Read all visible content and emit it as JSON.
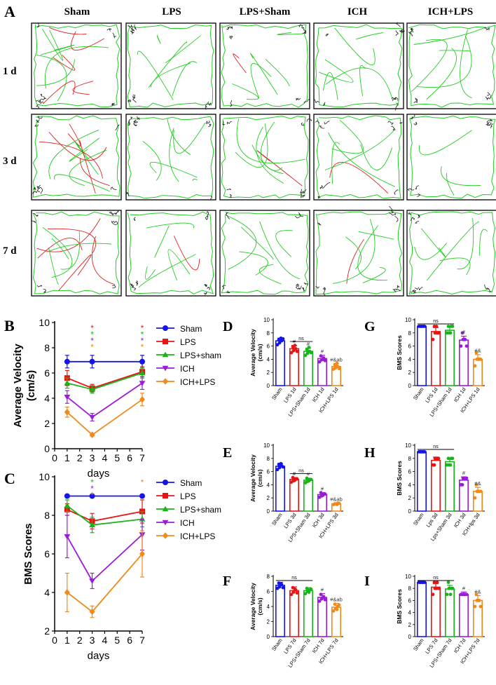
{
  "panel_letters": [
    "A",
    "B",
    "C",
    "D",
    "E",
    "F",
    "G",
    "H",
    "I"
  ],
  "trace_panel": {
    "columns": [
      "Sham",
      "LPS",
      "LPS+Sham",
      "ICH",
      "ICH+LPS"
    ],
    "rows": [
      "1 d",
      "3 d",
      "7 d"
    ]
  },
  "colors": {
    "sham": "#1515e8",
    "lps": "#e81515",
    "lpssham": "#17b51a",
    "ich": "#9b1bd8",
    "ichlps": "#f08a1c",
    "trace_green": "#22cc22",
    "trace_red": "#dd2222"
  },
  "chart_data": [
    {
      "id": "B",
      "type": "line",
      "title": "",
      "xlabel": "days",
      "ylabel": "Average Velocity\n(cm/s)",
      "ylabel_lines": [
        "Average Velocity",
        "(cm/s)"
      ],
      "xlim": [
        0,
        7
      ],
      "ylim": [
        0,
        10
      ],
      "xticks": [
        0,
        1,
        2,
        3,
        4,
        5,
        6,
        7
      ],
      "yticks": [
        0,
        2,
        4,
        6,
        8,
        10
      ],
      "x": [
        1,
        3,
        7
      ],
      "series": [
        {
          "name": "Sham",
          "values": [
            6.9,
            6.9,
            6.9
          ],
          "err": [
            0.5,
            0.5,
            0.5
          ],
          "marker": "circle",
          "color": "#1515e8"
        },
        {
          "name": "LPS",
          "values": [
            5.6,
            4.8,
            6.1
          ],
          "err": [
            0.6,
            0.3,
            0.4
          ],
          "marker": "square",
          "color": "#e81515"
        },
        {
          "name": "LPS+sham",
          "values": [
            5.2,
            4.7,
            6.0
          ],
          "err": [
            0.4,
            0.3,
            0.4
          ],
          "marker": "triangle",
          "color": "#17b51a"
        },
        {
          "name": "ICH",
          "values": [
            4.1,
            2.5,
            5.2
          ],
          "err": [
            0.5,
            0.3,
            0.5
          ],
          "marker": "triangle-down",
          "color": "#9b1bd8"
        },
        {
          "name": "ICH+LPS",
          "values": [
            2.9,
            1.1,
            3.9
          ],
          "err": [
            0.4,
            0.1,
            0.5
          ],
          "marker": "diamond",
          "color": "#f08a1c"
        }
      ],
      "legend": "right",
      "significance": [
        {
          "x": 3,
          "stars": [
            "*",
            "*",
            "*",
            "*"
          ],
          "colors": [
            "#e81515",
            "#17b51a",
            "#9b1bd8",
            "#f08a1c"
          ]
        },
        {
          "x": 7,
          "stars": [
            "*",
            "*",
            "*",
            "*"
          ],
          "colors": [
            "#e81515",
            "#17b51a",
            "#9b1bd8",
            "#f08a1c"
          ]
        }
      ]
    },
    {
      "id": "C",
      "type": "line",
      "xlabel": "days",
      "ylabel": "BMS Scores",
      "ylabel_lines": [
        "BMS Scores"
      ],
      "xlim": [
        0,
        7
      ],
      "ylim": [
        2,
        10
      ],
      "xticks": [
        0,
        1,
        2,
        3,
        4,
        5,
        6,
        7
      ],
      "yticks": [
        2,
        4,
        6,
        8,
        10
      ],
      "x": [
        1,
        3,
        7
      ],
      "series": [
        {
          "name": "Sham",
          "values": [
            9.0,
            9.0,
            9.0
          ],
          "err": [
            0,
            0,
            0
          ],
          "marker": "circle",
          "color": "#1515e8"
        },
        {
          "name": "LPS",
          "values": [
            8.3,
            7.7,
            8.2
          ],
          "err": [
            0.3,
            0.4,
            0.6
          ],
          "marker": "square",
          "color": "#e81515"
        },
        {
          "name": "LPS+sham",
          "values": [
            8.5,
            7.5,
            7.8
          ],
          "err": [
            0.3,
            0.4,
            0.4
          ],
          "marker": "triangle",
          "color": "#17b51a"
        },
        {
          "name": "ICH",
          "values": [
            6.9,
            4.6,
            7.0
          ],
          "err": [
            1.1,
            0.4,
            0.8
          ],
          "marker": "triangle-down",
          "color": "#9b1bd8"
        },
        {
          "name": "ICH+LPS",
          "values": [
            4.0,
            3.0,
            6.0
          ],
          "err": [
            1.0,
            0.3,
            1.2
          ],
          "marker": "diamond",
          "color": "#f08a1c"
        }
      ],
      "legend": "right",
      "significance": [
        {
          "x": 3,
          "stars": [
            "*",
            "*",
            "*"
          ],
          "colors": [
            "#17b51a",
            "#9b1bd8",
            "#f08a1c"
          ]
        },
        {
          "x": 7,
          "stars": [
            "*"
          ],
          "colors": [
            "#f08a1c"
          ]
        }
      ]
    },
    {
      "id": "D",
      "type": "bar",
      "ylabel": "Average Velocity\n(cm/s)",
      "ylabel_lines": [
        "Average Velocity",
        "(cm/s)"
      ],
      "ylim": [
        0,
        10
      ],
      "yticks": [
        0,
        2,
        4,
        6,
        8,
        10
      ],
      "categories": [
        "Sham",
        "LPS 1d",
        "LPS+Sham 1d",
        "ICH 1d",
        "ICH+LPS 1d"
      ],
      "values": [
        6.8,
        5.6,
        5.2,
        4.1,
        2.9
      ],
      "err": [
        0.4,
        0.5,
        0.5,
        0.5,
        0.4
      ],
      "points": [
        [
          6.2,
          6.5,
          6.8,
          7.0,
          7.2,
          7.1
        ],
        [
          5.0,
          5.3,
          5.6,
          5.9,
          6.1,
          5.2
        ],
        [
          4.6,
          4.9,
          5.2,
          5.5,
          5.8,
          5.0
        ],
        [
          3.6,
          3.9,
          4.2,
          4.5,
          4.0,
          3.8
        ],
        [
          2.5,
          2.7,
          2.9,
          3.2,
          3.4,
          2.6
        ]
      ],
      "bracket": {
        "from": 1,
        "to": 2,
        "text": "ns"
      },
      "annotations": [
        "",
        "#",
        "#",
        "#",
        "#&ab"
      ]
    },
    {
      "id": "E",
      "type": "bar",
      "ylabel": "Average Velocity\n(cm/s)",
      "ylabel_lines": [
        "Average Velocity",
        "(cm/s)"
      ],
      "ylim": [
        0,
        10
      ],
      "yticks": [
        0,
        2,
        4,
        6,
        8,
        10
      ],
      "categories": [
        "Sham",
        "LPS 3d",
        "LPS+Sham 3d",
        "ICH 3d",
        "ICH+LPS 3d"
      ],
      "values": [
        6.8,
        4.8,
        4.7,
        2.5,
        1.1
      ],
      "err": [
        0.4,
        0.3,
        0.3,
        0.3,
        0.1
      ],
      "points": [
        [
          6.3,
          6.6,
          6.9,
          7.1,
          7.2,
          6.7
        ],
        [
          4.4,
          4.6,
          4.9,
          5.1,
          4.7,
          4.9
        ],
        [
          4.3,
          4.5,
          4.8,
          5.0,
          4.6,
          4.8
        ],
        [
          2.1,
          2.3,
          2.6,
          2.8,
          2.4,
          2.6
        ],
        [
          1.0,
          1.1,
          1.2,
          1.1,
          1.0,
          1.2
        ]
      ],
      "bracket": {
        "from": 1,
        "to": 2,
        "text": "ns"
      },
      "annotations": [
        "",
        "#",
        "#",
        "#",
        "#&ab"
      ]
    },
    {
      "id": "F",
      "type": "bar",
      "ylabel": "Average Velocity\n(cm/s)",
      "ylabel_lines": [
        "Average Velocity",
        "(cm/s)"
      ],
      "ylim": [
        0,
        8
      ],
      "yticks": [
        0,
        2,
        4,
        6,
        8
      ],
      "categories": [
        "Sham",
        "LPS 7d",
        "LPS+Sham 7d",
        "ICH 7d",
        "ICH+LPS 7d"
      ],
      "values": [
        6.8,
        6.1,
        6.1,
        5.2,
        3.9
      ],
      "err": [
        0.4,
        0.5,
        0.4,
        0.5,
        0.5
      ],
      "points": [
        [
          6.4,
          6.6,
          6.9,
          7.1,
          7.0,
          6.5
        ],
        [
          5.6,
          5.9,
          6.2,
          6.5,
          6.3,
          5.8
        ],
        [
          5.7,
          6.0,
          6.2,
          6.4,
          5.9,
          6.3
        ],
        [
          4.7,
          5.0,
          5.3,
          5.6,
          5.2,
          4.9
        ],
        [
          3.4,
          3.7,
          4.0,
          4.3,
          3.6,
          4.2
        ]
      ],
      "bracket": {
        "from": 0,
        "to": 2,
        "text": "ns"
      },
      "annotations": [
        "",
        "",
        "",
        "#",
        "#&ab"
      ]
    },
    {
      "id": "G",
      "type": "bar",
      "ylabel": "BMS Scores",
      "ylabel_lines": [
        "BMS Scores"
      ],
      "ylim": [
        0,
        10
      ],
      "yticks": [
        0,
        2,
        4,
        6,
        8,
        10
      ],
      "categories": [
        "Sham",
        "LPS 1d",
        "LPS+Sham 1d",
        "ICH 1d",
        "ICH+LPS 1d"
      ],
      "values": [
        9.0,
        8.2,
        8.4,
        6.9,
        4.0
      ],
      "err": [
        0,
        0.6,
        0.5,
        0.6,
        0.7
      ],
      "points": [
        [
          9,
          9,
          9,
          9,
          9,
          9
        ],
        [
          7,
          8,
          8,
          9,
          9,
          8
        ],
        [
          8,
          8,
          9,
          9,
          8,
          9
        ],
        [
          6,
          7,
          7,
          8,
          7,
          6
        ],
        [
          3,
          4,
          4,
          5,
          4,
          4
        ]
      ],
      "bracket": {
        "from": 0,
        "to": 2,
        "text": "ns"
      },
      "annotations": [
        "",
        "",
        "",
        "#",
        "#&"
      ]
    },
    {
      "id": "H",
      "type": "bar",
      "ylabel": "BMS Scores",
      "ylabel_lines": [
        "BMS Scores"
      ],
      "ylim": [
        0,
        10
      ],
      "yticks": [
        0,
        2,
        4,
        6,
        8,
        10
      ],
      "categories": [
        "Sham",
        "Lps 3d",
        "Lps+Sham 3d",
        "ICH 3d",
        "ICH+lps 3d"
      ],
      "values": [
        9.0,
        7.7,
        7.5,
        4.7,
        3.0
      ],
      "err": [
        0,
        0.5,
        0.5,
        0.5,
        0.6
      ],
      "points": [
        [
          9,
          9,
          9,
          9,
          9,
          9
        ],
        [
          7,
          8,
          8,
          7,
          8,
          8
        ],
        [
          7,
          7,
          8,
          8,
          7,
          8
        ],
        [
          4,
          5,
          5,
          4,
          5,
          5
        ],
        [
          2,
          3,
          3,
          4,
          3,
          3
        ]
      ],
      "bracket": {
        "from": 0,
        "to": 2,
        "text": "ns"
      },
      "annotations": [
        "",
        "",
        "",
        "#",
        "#&"
      ]
    },
    {
      "id": "I",
      "type": "bar",
      "ylabel": "BMS Scores",
      "ylabel_lines": [
        "BMS Scores"
      ],
      "ylim": [
        0,
        10
      ],
      "yticks": [
        0,
        2,
        4,
        6,
        8,
        10
      ],
      "categories": [
        "Sham",
        "LPS 7d",
        "LPS+Sham 7d",
        "ICH 7d",
        "ICH+LPS 7d"
      ],
      "values": [
        9.0,
        8.2,
        7.9,
        7.0,
        6.0
      ],
      "err": [
        0,
        0.6,
        0.6,
        0.4,
        0.8
      ],
      "points": [
        [
          9,
          9,
          9,
          9,
          9,
          9
        ],
        [
          7,
          8,
          9,
          9,
          8,
          8
        ],
        [
          7,
          8,
          8,
          9,
          7,
          8
        ],
        [
          7,
          7,
          7,
          7,
          7,
          7
        ],
        [
          5,
          6,
          6,
          7,
          6,
          5
        ]
      ],
      "bracket": {
        "from": 0,
        "to": 2,
        "text": "ns"
      },
      "annotations": [
        "",
        "",
        "",
        "#",
        "#&"
      ]
    }
  ]
}
